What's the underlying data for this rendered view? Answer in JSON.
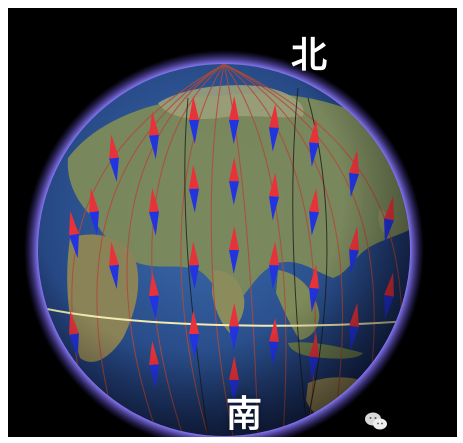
{
  "labels": {
    "north": "北",
    "south": "南"
  },
  "colors": {
    "background": "#000000",
    "atmosphere_glow": "#7b6cff",
    "ocean": "#2a4f8f",
    "land": "#7d8a5a",
    "magnetic_line": "#b04a3a",
    "equator": "#f2ebb0",
    "arrow_north_half": "#e8323a",
    "arrow_south_half": "#2233e0"
  },
  "icons": {
    "watermark": "wechat-icon"
  }
}
